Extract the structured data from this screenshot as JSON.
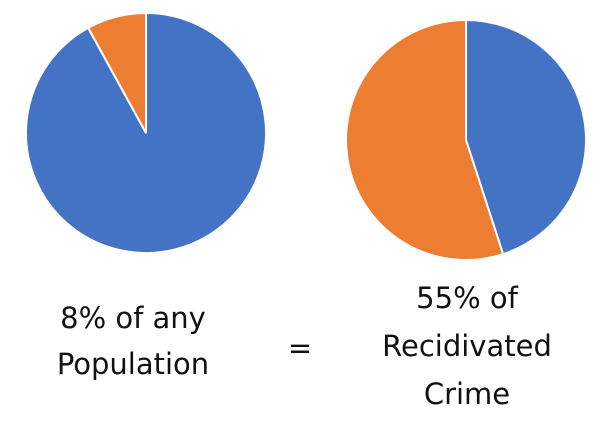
{
  "chart_data": [
    {
      "type": "pie",
      "values": [
        92,
        8
      ],
      "colors": [
        "#4472c4",
        "#ed7d31"
      ],
      "caption": [
        "8% of any",
        "Population"
      ]
    },
    {
      "type": "pie",
      "values": [
        45,
        55
      ],
      "colors": [
        "#4472c4",
        "#ed7d31"
      ],
      "caption": [
        "55% of",
        "Recidivated",
        "Crime"
      ]
    }
  ],
  "equals": "="
}
